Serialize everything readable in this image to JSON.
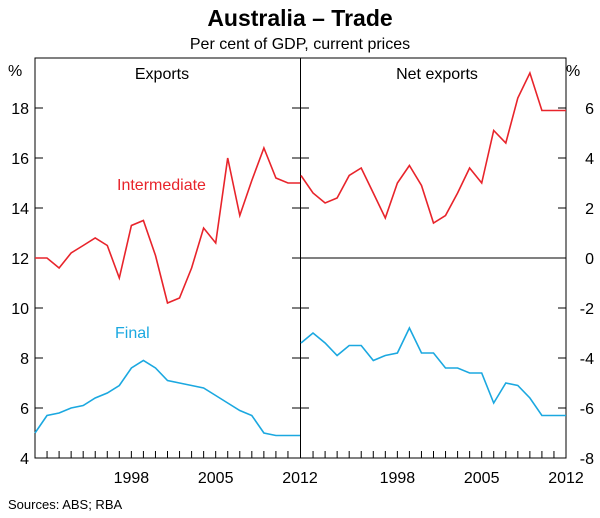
{
  "chart_data": {
    "type": "line",
    "title": "Australia – Trade",
    "subtitle": "Per cent of GDP, current prices",
    "source": "Sources: ABS; RBA",
    "colors": {
      "red": "#e8242b",
      "blue": "#1ba8e0"
    },
    "left_axis": {
      "unit": "%",
      "ylim": [
        4,
        20
      ],
      "ticks": [
        "4",
        "6",
        "8",
        "10",
        "12",
        "14",
        "16",
        "18"
      ]
    },
    "right_axis": {
      "unit": "%",
      "ylim": [
        -8,
        8
      ],
      "ticks": [
        "-8",
        "-6",
        "-4",
        "-2",
        "0",
        "2",
        "4",
        "6"
      ]
    },
    "xlim": [
      1990,
      2012
    ],
    "x_ticks": [
      "1998",
      "2005",
      "2012"
    ],
    "panels": [
      {
        "title": "Exports",
        "series": [
          {
            "name": "Intermediate",
            "color": "#e8242b",
            "x": [
              1990,
              1991,
              1992,
              1993,
              1994,
              1995,
              1996,
              1997,
              1998,
              1999,
              2000,
              2001,
              2002,
              2003,
              2004,
              2005,
              2006,
              2007,
              2008,
              2009,
              2010,
              2011,
              2012
            ],
            "values": [
              12.0,
              12.0,
              11.6,
              12.2,
              12.5,
              12.8,
              12.5,
              11.2,
              13.3,
              13.5,
              12.1,
              10.2,
              10.4,
              11.6,
              13.2,
              12.6,
              16.0,
              13.7,
              15.1,
              16.4,
              15.2,
              15.0,
              15.0
            ]
          },
          {
            "name": "Final",
            "color": "#1ba8e0",
            "x": [
              1990,
              1991,
              1992,
              1993,
              1994,
              1995,
              1996,
              1997,
              1998,
              1999,
              2000,
              2001,
              2002,
              2003,
              2004,
              2005,
              2006,
              2007,
              2008,
              2009,
              2010,
              2011,
              2012
            ],
            "values": [
              5.0,
              5.7,
              5.8,
              6.0,
              6.1,
              6.4,
              6.6,
              6.9,
              7.6,
              7.9,
              7.6,
              7.1,
              7.0,
              6.9,
              6.8,
              6.5,
              6.2,
              5.9,
              5.7,
              5.0,
              4.9,
              4.9,
              4.9
            ]
          }
        ]
      },
      {
        "title": "Net exports",
        "series": [
          {
            "name": "Intermediate",
            "color": "#e8242b",
            "x": [
              1990,
              1991,
              1992,
              1993,
              1994,
              1995,
              1996,
              1997,
              1998,
              1999,
              2000,
              2001,
              2002,
              2003,
              2004,
              2005,
              2006,
              2007,
              2008,
              2009,
              2010,
              2011,
              2012
            ],
            "values": [
              3.3,
              2.6,
              2.2,
              2.4,
              3.3,
              3.6,
              2.6,
              1.6,
              3.0,
              3.7,
              2.9,
              1.4,
              1.7,
              2.6,
              3.6,
              3.0,
              5.1,
              4.6,
              6.4,
              7.4,
              5.9,
              5.9,
              5.9
            ]
          },
          {
            "name": "Final",
            "color": "#1ba8e0",
            "x": [
              1990,
              1991,
              1992,
              1993,
              1994,
              1995,
              1996,
              1997,
              1998,
              1999,
              2000,
              2001,
              2002,
              2003,
              2004,
              2005,
              2006,
              2007,
              2008,
              2009,
              2010,
              2011,
              2012
            ],
            "values": [
              -3.4,
              -3.0,
              -3.4,
              -3.9,
              -3.5,
              -3.5,
              -4.1,
              -3.9,
              -3.8,
              -2.8,
              -3.8,
              -3.8,
              -4.4,
              -4.4,
              -4.6,
              -4.6,
              -5.8,
              -5.0,
              -5.1,
              -5.6,
              -6.3,
              -6.3,
              -6.3
            ]
          }
        ]
      }
    ],
    "annotations": [
      {
        "text": "Intermediate",
        "color": "#e8242b"
      },
      {
        "text": "Final",
        "color": "#1ba8e0"
      }
    ]
  }
}
